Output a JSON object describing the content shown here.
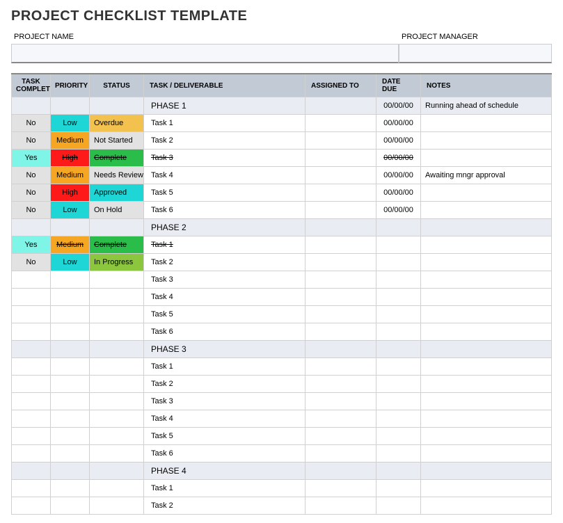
{
  "title": "PROJECT CHECKLIST TEMPLATE",
  "meta": {
    "project_name_label": "PROJECT NAME",
    "project_manager_label": "PROJECT MANAGER"
  },
  "columns": {
    "complete": "TASK COMPLETE?",
    "priority": "PRIORITY",
    "status": "STATUS",
    "task": "TASK  / DELIVERABLE",
    "assigned": "ASSIGNED TO",
    "date": "DATE DUE",
    "notes": "NOTES"
  },
  "colors": {
    "grey": "#e2e2e2",
    "cyan_yes": "#7ff5e7",
    "low": "#1fd6d6",
    "medium": "#f5a623",
    "high": "#ff1a1a",
    "overdue": "#f2c14e",
    "notstarted_bg": "#e2e2e2",
    "complete": "#2bbd4a",
    "needsreview_bg": "#e2e2e2",
    "approved": "#1fd6d6",
    "onhold_bg": "#e2e2e2",
    "inprogress": "#8cc63f",
    "phase_bg": "#e9edf3"
  },
  "rows": [
    {
      "type": "phase",
      "task": "PHASE 1",
      "date": "00/00/00",
      "notes": "Running ahead of schedule"
    },
    {
      "type": "task",
      "complete": "No",
      "complete_bg": "grey",
      "priority": "Low",
      "priority_bg": "low",
      "status": "Overdue",
      "status_bg": "overdue",
      "task": "Task 1",
      "date": "00/00/00"
    },
    {
      "type": "task",
      "complete": "No",
      "complete_bg": "grey",
      "priority": "Medium",
      "priority_bg": "medium",
      "status": "Not Started",
      "status_bg": "notstarted_bg",
      "task": "Task 2",
      "date": "00/00/00"
    },
    {
      "type": "task",
      "complete": "Yes",
      "complete_bg": "cyan_yes",
      "priority": "High",
      "priority_bg": "high",
      "status": "Complete",
      "status_bg": "complete",
      "task": "Task 3",
      "date": "00/00/00",
      "strike": true
    },
    {
      "type": "task",
      "complete": "No",
      "complete_bg": "grey",
      "priority": "Medium",
      "priority_bg": "medium",
      "status": "Needs Review",
      "status_bg": "needsreview_bg",
      "task": "Task 4",
      "date": "00/00/00",
      "notes": "Awaiting mngr approval"
    },
    {
      "type": "task",
      "complete": "No",
      "complete_bg": "grey",
      "priority": "High",
      "priority_bg": "high",
      "status": "Approved",
      "status_bg": "approved",
      "task": "Task 5",
      "date": "00/00/00"
    },
    {
      "type": "task",
      "complete": "No",
      "complete_bg": "grey",
      "priority": "Low",
      "priority_bg": "low",
      "status": "On Hold",
      "status_bg": "onhold_bg",
      "task": "Task 6",
      "date": "00/00/00"
    },
    {
      "type": "phase",
      "task": "PHASE 2"
    },
    {
      "type": "task",
      "complete": "Yes",
      "complete_bg": "cyan_yes",
      "priority": "Medium",
      "priority_bg": "medium",
      "status": "Complete",
      "status_bg": "complete",
      "task": "Task 1",
      "strike": true
    },
    {
      "type": "task",
      "complete": "No",
      "complete_bg": "grey",
      "priority": "Low",
      "priority_bg": "low",
      "status": "In Progress",
      "status_bg": "inprogress",
      "task": "Task 2"
    },
    {
      "type": "task",
      "task": "Task 3"
    },
    {
      "type": "task",
      "task": "Task 4"
    },
    {
      "type": "task",
      "task": "Task 5"
    },
    {
      "type": "task",
      "task": "Task 6"
    },
    {
      "type": "phase",
      "task": "PHASE 3"
    },
    {
      "type": "task",
      "task": "Task 1"
    },
    {
      "type": "task",
      "task": "Task 2"
    },
    {
      "type": "task",
      "task": "Task 3"
    },
    {
      "type": "task",
      "task": "Task 4"
    },
    {
      "type": "task",
      "task": "Task 5"
    },
    {
      "type": "task",
      "task": "Task 6"
    },
    {
      "type": "phase",
      "task": "PHASE 4"
    },
    {
      "type": "task",
      "task": "Task 1"
    },
    {
      "type": "task",
      "task": "Task 2"
    }
  ]
}
